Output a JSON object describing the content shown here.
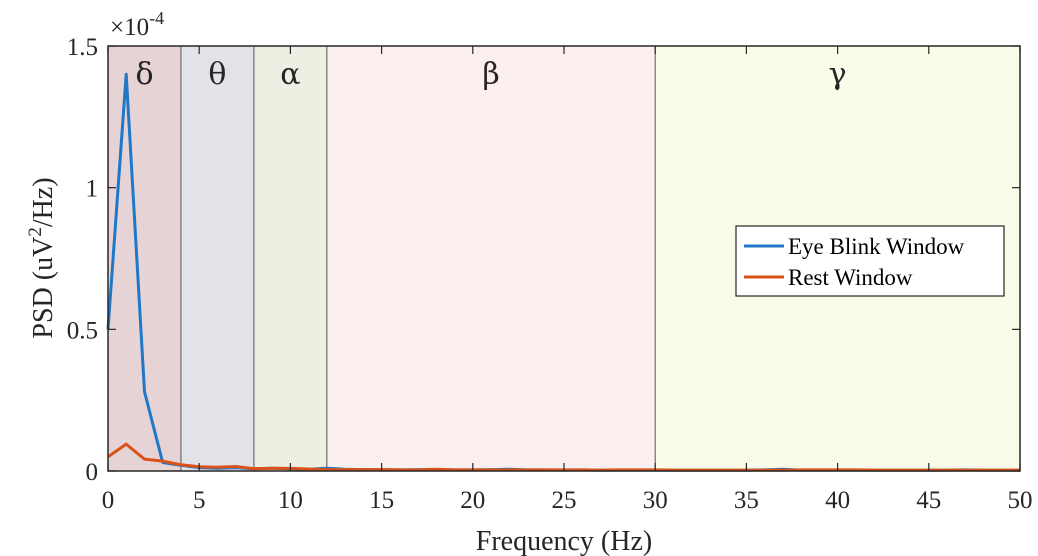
{
  "chart_data": {
    "type": "line",
    "title": "",
    "xlabel": "Frequency (Hz)",
    "ylabel_prefix": "PSD (uV",
    "ylabel_sup": "2",
    "ylabel_suffix": "/Hz)",
    "exponent_base": "×10",
    "exponent_power": "-4",
    "xlim": [
      0,
      50
    ],
    "ylim": [
      0,
      1.5
    ],
    "x_ticks": [
      0,
      5,
      10,
      15,
      20,
      25,
      30,
      35,
      40,
      45,
      50
    ],
    "x_tick_labels": [
      "0",
      "5",
      "10",
      "15",
      "20",
      "25",
      "30",
      "35",
      "40",
      "45",
      "50"
    ],
    "y_ticks": [
      0,
      0.5,
      1,
      1.5
    ],
    "y_tick_labels": [
      "0",
      "0.5",
      "1",
      "1.5"
    ],
    "grid": false,
    "legend_position": "right",
    "bands": [
      {
        "label": "δ",
        "from": 0,
        "to": 4,
        "color": "#e6d3d5"
      },
      {
        "label": "θ",
        "from": 4,
        "to": 8,
        "color": "#e1e3e8"
      },
      {
        "label": "α",
        "from": 8,
        "to": 12,
        "color": "#edefe3"
      },
      {
        "label": "β",
        "from": 12,
        "to": 30,
        "color": "#fcefef"
      },
      {
        "label": "γ",
        "from": 30,
        "to": 50,
        "color": "#fbfbea"
      }
    ],
    "series": [
      {
        "name": "Eye Blink Window",
        "color": "#1f77c8",
        "x": [
          0,
          1,
          2,
          3,
          4,
          5,
          6,
          7,
          8,
          9,
          10,
          11,
          12,
          13,
          14,
          15,
          16,
          17,
          18,
          19,
          20,
          21,
          22,
          23,
          24,
          25,
          26,
          27,
          28,
          29,
          30,
          31,
          32,
          33,
          34,
          35,
          36,
          37,
          38,
          39,
          40,
          41,
          42,
          43,
          44,
          45,
          46,
          47,
          48,
          49,
          50
        ],
        "y": [
          0.5,
          1.4,
          0.28,
          0.03,
          0.02,
          0.012,
          0.01,
          0.012,
          0.008,
          0.01,
          0.008,
          0.006,
          0.01,
          0.006,
          0.005,
          0.005,
          0.004,
          0.005,
          0.004,
          0.004,
          0.004,
          0.005,
          0.006,
          0.004,
          0.004,
          0.003,
          0.004,
          0.003,
          0.003,
          0.003,
          0.003,
          0.003,
          0.003,
          0.003,
          0.003,
          0.003,
          0.004,
          0.006,
          0.003,
          0.003,
          0.003,
          0.003,
          0.003,
          0.003,
          0.003,
          0.003,
          0.003,
          0.004,
          0.003,
          0.003,
          0.003
        ]
      },
      {
        "name": "Rest Window",
        "color": "#d95319",
        "x": [
          0,
          1,
          2,
          3,
          4,
          5,
          6,
          7,
          8,
          9,
          10,
          11,
          12,
          13,
          14,
          15,
          16,
          17,
          18,
          19,
          20,
          21,
          22,
          23,
          24,
          25,
          26,
          27,
          28,
          29,
          30,
          31,
          32,
          33,
          34,
          35,
          36,
          37,
          38,
          39,
          40,
          41,
          42,
          43,
          44,
          45,
          46,
          47,
          48,
          49,
          50
        ],
        "y": [
          0.05,
          0.095,
          0.042,
          0.035,
          0.022,
          0.015,
          0.013,
          0.016,
          0.008,
          0.01,
          0.009,
          0.007,
          0.005,
          0.005,
          0.005,
          0.005,
          0.004,
          0.004,
          0.006,
          0.004,
          0.004,
          0.004,
          0.004,
          0.004,
          0.004,
          0.004,
          0.004,
          0.003,
          0.004,
          0.004,
          0.004,
          0.003,
          0.003,
          0.003,
          0.003,
          0.003,
          0.003,
          0.003,
          0.004,
          0.004,
          0.004,
          0.004,
          0.003,
          0.003,
          0.003,
          0.003,
          0.003,
          0.003,
          0.003,
          0.003,
          0.003
        ]
      }
    ]
  }
}
